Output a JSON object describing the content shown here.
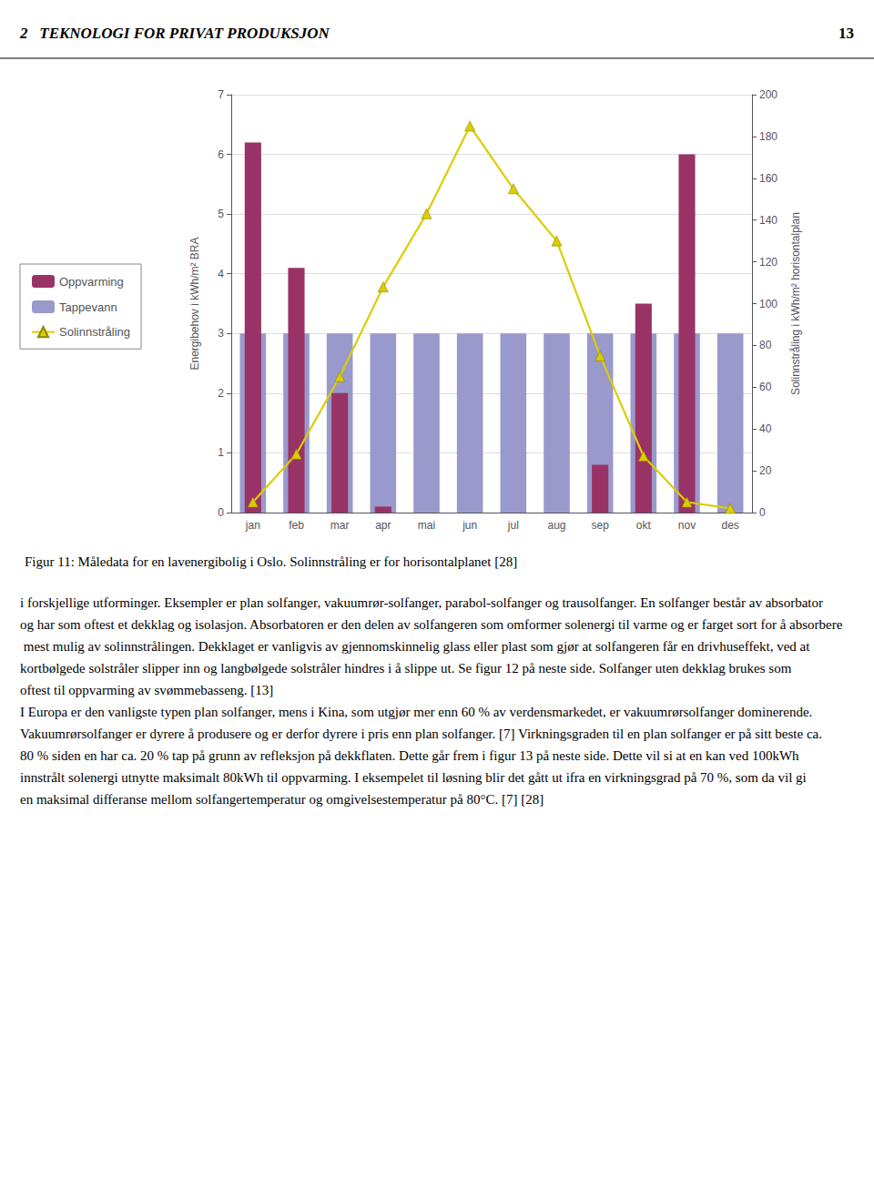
{
  "chart_data": {
    "type": "bar",
    "title": "Figur 11: Måledata for en lavenergibolig i Oslo. Solinnstråling er for horisontalplanet [28]",
    "categories": [
      "jan",
      "feb",
      "mar",
      "apr",
      "mai",
      "jun",
      "jul",
      "aug",
      "sep",
      "okt",
      "nov",
      "des"
    ],
    "series": [
      {
        "name": "Oppvarming",
        "type": "bar",
        "color": "#993366",
        "values": [
          6.2,
          4.1,
          2.0,
          0.1,
          0.0,
          0.0,
          0.0,
          0.0,
          0.8,
          3.5,
          6.0,
          0.0
        ]
      },
      {
        "name": "Tappevann",
        "type": "bar",
        "color": "#9999CC",
        "values": [
          3.0,
          3.0,
          3.0,
          3.0,
          3.0,
          3.0,
          3.0,
          3.0,
          3.0,
          3.0,
          3.0,
          3.0
        ]
      },
      {
        "name": "Solinnstråling",
        "type": "line",
        "axis": "y2",
        "color": "#DDCC00",
        "marker": "triangle",
        "values": [
          5,
          28,
          65,
          108,
          143,
          185,
          155,
          130,
          75,
          27,
          5,
          2
        ]
      }
    ],
    "ylabel": "Energibehov i kWh/m² BRA",
    "y2label": "Solinnstråling i kWh/m² horisontalplan",
    "ylim": [
      0,
      7
    ],
    "yticks": [
      0,
      1,
      2,
      3,
      4,
      5,
      6,
      7
    ],
    "y2lim": [
      0,
      200
    ],
    "y2ticks": [
      0,
      20,
      40,
      60,
      80,
      100,
      120,
      140,
      160,
      180,
      200
    ],
    "grid": true,
    "legend": "left",
    "annotations": [
      "2   TEKNOLOGI FOR PRIVAT PRODUKSJON",
      "13",
      "i forskjellige utforminger. Eksempler er plan solfanger, vakuumrør-solfanger, parabol-solfanger og trausolfanger. En solfanger består av absorbator og har som oftest et dekklag og isolasjon. Absorbatoren er den delen av solfangeren som omformer solenergi til varme og er farget sort for å absorbere mest mulig av solinnstrålingen. Dekklaget er vanligvis av gjennomskinnelig glass eller plast som gjør at solfangeren får en drivhuseffekt, ved at kortbølgede solstråler slipper inn og langbølgede solstråler hindres i å slippe ut. Se figur 12 på neste side. Solfanger uten dekklag brukes som oftest til oppvarming av svømmebasseng. [13]",
      "I Europa er den vanligste typen plan solfanger, mens i Kina, som utgjør mer enn 60 % av verdensmarkedet, er vakuumrørsolfanger dominerende. Vakuumrørsolfanger er dyrere å produsere og er derfor dyrere i pris enn plan solfanger. [7] Virkningsgraden til en plan solfanger er på sitt beste ca. 80 % siden en har ca. 20 % tap på grunn av refleksjon på dekkflaten. Dette går frem i figur 13 på neste side. Dette vil si at en kan ved 100kWh innstrålt solenergi utnytte maksimalt 80kWh til oppvarming. I eksempelet til løsning blir det gått ut ifra en virkningsgrad på 70 %, som da vil gi en maksimal differanse mellom solfangertemperatur og omgivelsestemperatur på 80°C. [7] [28]"
    ]
  }
}
